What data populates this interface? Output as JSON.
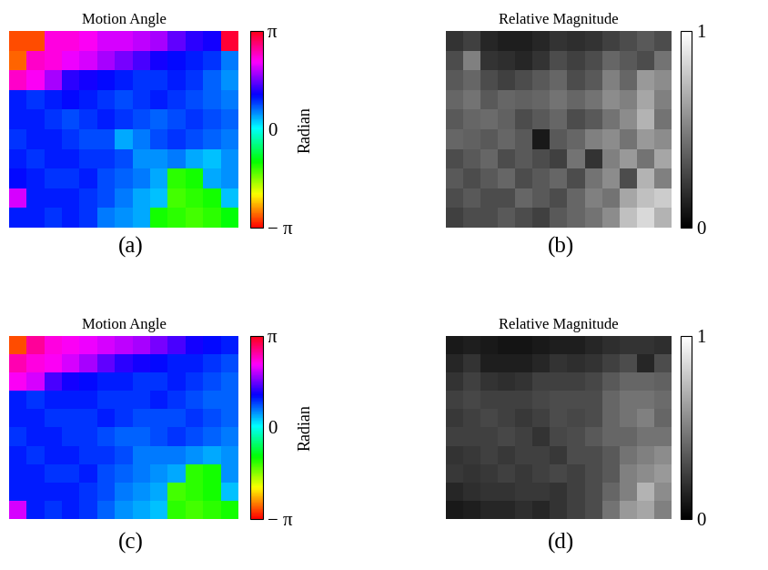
{
  "chart_data": [
    {
      "type": "heatmap",
      "title": "Motion Angle",
      "caption": "(a)",
      "color": "hsv",
      "tick_labels": false,
      "cells": [
        [
          -2.8,
          -2.8,
          2.3,
          2.3,
          2.2,
          2.0,
          2.0,
          1.9,
          1.8,
          1.5,
          1.3,
          1.2,
          3.0
        ],
        [
          -2.7,
          2.4,
          2.3,
          2.1,
          2.0,
          1.8,
          1.6,
          1.4,
          1.2,
          1.1,
          1.0,
          0.9,
          0.6
        ],
        [
          2.4,
          2.2,
          1.8,
          1.3,
          1.2,
          1.1,
          1.0,
          0.9,
          0.9,
          1.0,
          0.9,
          0.7,
          0.5
        ],
        [
          1.0,
          0.9,
          1.0,
          1.1,
          1.0,
          0.9,
          0.8,
          0.9,
          1.0,
          0.9,
          0.8,
          0.7,
          0.6
        ],
        [
          1.0,
          1.0,
          0.9,
          0.8,
          0.9,
          1.0,
          0.9,
          0.8,
          0.7,
          0.8,
          0.9,
          0.8,
          0.7
        ],
        [
          0.9,
          1.0,
          1.0,
          0.9,
          0.8,
          0.8,
          0.4,
          0.6,
          0.8,
          0.9,
          0.8,
          0.7,
          0.6
        ],
        [
          1.0,
          0.9,
          1.0,
          1.0,
          0.9,
          0.9,
          0.8,
          0.5,
          0.5,
          0.6,
          0.4,
          0.3,
          0.5
        ],
        [
          1.1,
          1.0,
          0.9,
          0.9,
          1.0,
          0.8,
          0.7,
          0.6,
          0.4,
          -1.2,
          -1.1,
          0.4,
          0.5
        ],
        [
          2.0,
          1.0,
          1.0,
          1.0,
          0.9,
          0.8,
          0.6,
          0.4,
          0.3,
          -1.3,
          -1.2,
          -1.1,
          0.3
        ],
        [
          1.0,
          1.0,
          0.9,
          1.0,
          0.9,
          0.6,
          0.5,
          0.4,
          -1.1,
          -1.2,
          -1.3,
          -1.2,
          -1.0
        ]
      ],
      "colorbar": {
        "range": [
          -3.14159,
          3.14159
        ],
        "label": "Radian",
        "ticks": [
          {
            "value": 3.14159,
            "label": "π"
          },
          0,
          {
            "value": -3.14159,
            "label": "− π"
          }
        ]
      }
    },
    {
      "type": "heatmap",
      "title": "Relative Magnitude",
      "caption": "(b)",
      "color": "gray",
      "tick_labels": false,
      "cells": [
        [
          0.2,
          0.25,
          0.15,
          0.12,
          0.12,
          0.15,
          0.2,
          0.18,
          0.2,
          0.25,
          0.3,
          0.35,
          0.3
        ],
        [
          0.3,
          0.5,
          0.2,
          0.18,
          0.15,
          0.2,
          0.3,
          0.25,
          0.3,
          0.4,
          0.35,
          0.3,
          0.45
        ],
        [
          0.35,
          0.4,
          0.3,
          0.25,
          0.3,
          0.35,
          0.4,
          0.3,
          0.35,
          0.5,
          0.4,
          0.6,
          0.55
        ],
        [
          0.4,
          0.45,
          0.35,
          0.4,
          0.38,
          0.4,
          0.45,
          0.4,
          0.45,
          0.55,
          0.5,
          0.65,
          0.5
        ],
        [
          0.35,
          0.4,
          0.42,
          0.38,
          0.3,
          0.35,
          0.4,
          0.3,
          0.35,
          0.45,
          0.55,
          0.7,
          0.45
        ],
        [
          0.4,
          0.38,
          0.35,
          0.4,
          0.35,
          0.1,
          0.35,
          0.4,
          0.5,
          0.55,
          0.45,
          0.6,
          0.55
        ],
        [
          0.3,
          0.35,
          0.4,
          0.3,
          0.35,
          0.3,
          0.25,
          0.45,
          0.2,
          0.5,
          0.6,
          0.45,
          0.65
        ],
        [
          0.35,
          0.3,
          0.35,
          0.4,
          0.3,
          0.35,
          0.4,
          0.3,
          0.45,
          0.55,
          0.3,
          0.7,
          0.5
        ],
        [
          0.3,
          0.35,
          0.3,
          0.3,
          0.4,
          0.35,
          0.3,
          0.4,
          0.5,
          0.45,
          0.65,
          0.75,
          0.8
        ],
        [
          0.25,
          0.3,
          0.3,
          0.35,
          0.3,
          0.25,
          0.35,
          0.4,
          0.45,
          0.55,
          0.75,
          0.85,
          0.7
        ]
      ],
      "colorbar": {
        "range": [
          0,
          1
        ],
        "ticks": [
          0,
          1
        ]
      }
    },
    {
      "type": "heatmap",
      "title": "Motion Angle",
      "caption": "(c)",
      "color": "hsv",
      "tick_labels": false,
      "cells": [
        [
          -2.8,
          2.6,
          2.3,
          2.2,
          2.1,
          2.0,
          1.9,
          1.8,
          1.6,
          1.4,
          1.2,
          1.1,
          1.0
        ],
        [
          2.5,
          2.3,
          2.2,
          2.0,
          1.8,
          1.5,
          1.3,
          1.2,
          1.1,
          1.0,
          1.0,
          0.9,
          0.8
        ],
        [
          2.2,
          2.0,
          1.4,
          1.2,
          1.1,
          1.0,
          1.0,
          0.9,
          0.9,
          1.0,
          0.9,
          0.8,
          0.7
        ],
        [
          1.0,
          0.9,
          1.0,
          1.0,
          1.0,
          0.9,
          0.9,
          0.9,
          1.0,
          0.9,
          0.8,
          0.7,
          0.7
        ],
        [
          1.0,
          1.0,
          0.9,
          0.9,
          0.9,
          1.0,
          0.9,
          0.8,
          0.8,
          0.8,
          0.9,
          0.8,
          0.7
        ],
        [
          0.9,
          1.0,
          1.0,
          0.9,
          0.9,
          0.8,
          0.7,
          0.7,
          0.8,
          0.9,
          0.8,
          0.7,
          0.6
        ],
        [
          1.0,
          0.9,
          1.0,
          1.0,
          0.9,
          0.9,
          0.8,
          0.6,
          0.6,
          0.6,
          0.5,
          0.4,
          0.5
        ],
        [
          1.0,
          1.0,
          0.9,
          0.9,
          1.0,
          0.8,
          0.7,
          0.6,
          0.5,
          0.4,
          -1.2,
          -1.1,
          0.5
        ],
        [
          1.0,
          1.0,
          1.0,
          1.0,
          0.9,
          0.8,
          0.6,
          0.5,
          0.4,
          -1.3,
          -1.2,
          -1.1,
          0.3
        ],
        [
          2.0,
          1.0,
          0.9,
          1.0,
          0.9,
          0.7,
          0.5,
          0.4,
          0.3,
          -1.2,
          -1.3,
          -1.2,
          -1.1
        ]
      ],
      "colorbar": {
        "range": [
          -3.14159,
          3.14159
        ],
        "label": "Radian",
        "ticks": [
          {
            "value": 3.14159,
            "label": "π"
          },
          0,
          {
            "value": -3.14159,
            "label": "− π"
          }
        ]
      }
    },
    {
      "type": "heatmap",
      "title": "Relative Magnitude",
      "caption": "(d)",
      "color": "gray",
      "tick_labels": false,
      "cells": [
        [
          0.1,
          0.12,
          0.1,
          0.08,
          0.08,
          0.1,
          0.12,
          0.12,
          0.15,
          0.18,
          0.2,
          0.2,
          0.18
        ],
        [
          0.15,
          0.2,
          0.12,
          0.12,
          0.12,
          0.15,
          0.2,
          0.18,
          0.2,
          0.25,
          0.3,
          0.15,
          0.3
        ],
        [
          0.2,
          0.25,
          0.2,
          0.18,
          0.2,
          0.25,
          0.25,
          0.25,
          0.28,
          0.35,
          0.4,
          0.4,
          0.38
        ],
        [
          0.25,
          0.28,
          0.25,
          0.25,
          0.25,
          0.28,
          0.3,
          0.3,
          0.3,
          0.4,
          0.45,
          0.45,
          0.42
        ],
        [
          0.22,
          0.25,
          0.28,
          0.25,
          0.22,
          0.25,
          0.3,
          0.28,
          0.3,
          0.4,
          0.45,
          0.5,
          0.4
        ],
        [
          0.25,
          0.25,
          0.25,
          0.28,
          0.25,
          0.2,
          0.28,
          0.3,
          0.35,
          0.4,
          0.4,
          0.45,
          0.45
        ],
        [
          0.2,
          0.22,
          0.25,
          0.22,
          0.25,
          0.25,
          0.22,
          0.3,
          0.3,
          0.35,
          0.45,
          0.5,
          0.55
        ],
        [
          0.22,
          0.2,
          0.22,
          0.25,
          0.22,
          0.25,
          0.28,
          0.25,
          0.3,
          0.35,
          0.5,
          0.55,
          0.6
        ],
        [
          0.15,
          0.18,
          0.2,
          0.2,
          0.22,
          0.22,
          0.2,
          0.25,
          0.3,
          0.4,
          0.5,
          0.7,
          0.55
        ],
        [
          0.1,
          0.12,
          0.15,
          0.15,
          0.18,
          0.15,
          0.2,
          0.25,
          0.3,
          0.45,
          0.6,
          0.65,
          0.5
        ]
      ],
      "colorbar": {
        "range": [
          0,
          1
        ],
        "ticks": [
          0,
          1
        ]
      }
    }
  ]
}
